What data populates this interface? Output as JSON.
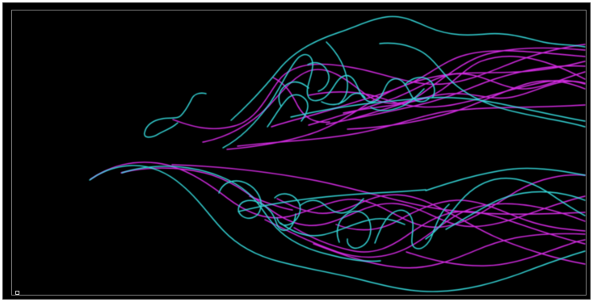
{
  "image": {
    "background_color": "#000000",
    "series_colors": {
      "cyan": "#35d4d6",
      "magenta": "#d12be0"
    }
  }
}
